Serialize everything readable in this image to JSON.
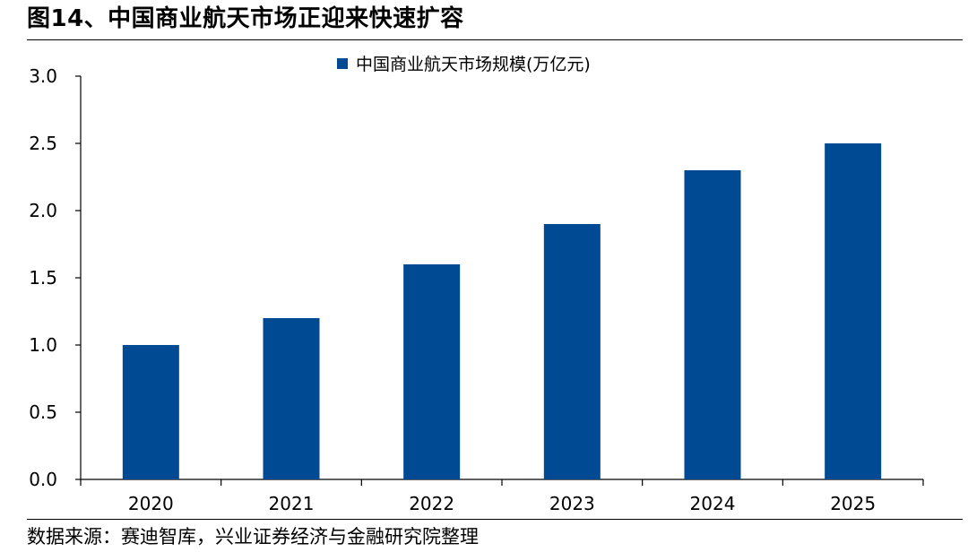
{
  "figure": {
    "title": "图14、中国商业航天市场正迎来快速扩容",
    "source": "数据来源：赛迪智库，兴业证券经济与金融研究院整理"
  },
  "chart_data": {
    "type": "bar",
    "categories": [
      "2020",
      "2021",
      "2022",
      "2023",
      "2024",
      "2025"
    ],
    "series": [
      {
        "name": "中国商业航天市场规模(万亿元)",
        "values": [
          1.0,
          1.2,
          1.6,
          1.9,
          2.3,
          2.5
        ],
        "color": "#004a94"
      }
    ],
    "ylim": [
      0,
      3.0
    ],
    "yticks": [
      "0.0",
      "0.5",
      "1.0",
      "1.5",
      "2.0",
      "2.5",
      "3.0"
    ],
    "grid": false,
    "legend_position": "top-center"
  }
}
